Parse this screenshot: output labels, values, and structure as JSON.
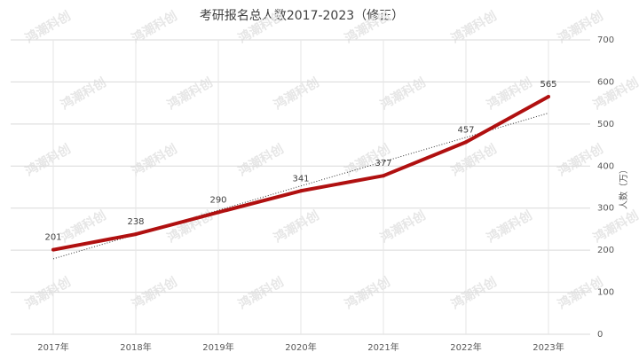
{
  "chart_data": {
    "type": "line",
    "title": "考研报名总人数2017-2023（修正）",
    "y_label": "人数（万）",
    "watermark": "鸿潮科创",
    "categories": [
      "2017年",
      "2018年",
      "2019年",
      "2020年",
      "2021年",
      "2022年",
      "2023年"
    ],
    "series": [
      {
        "name": "考研报名总人数",
        "color": "#b01010",
        "values": [
          201,
          238,
          290,
          341,
          377,
          457,
          565
        ]
      }
    ],
    "ylim": [
      0,
      700
    ],
    "yticks": [
      0,
      100,
      200,
      300,
      400,
      500,
      600,
      700
    ],
    "grid": true,
    "y_axis_side": "right",
    "trendline": "linear"
  }
}
